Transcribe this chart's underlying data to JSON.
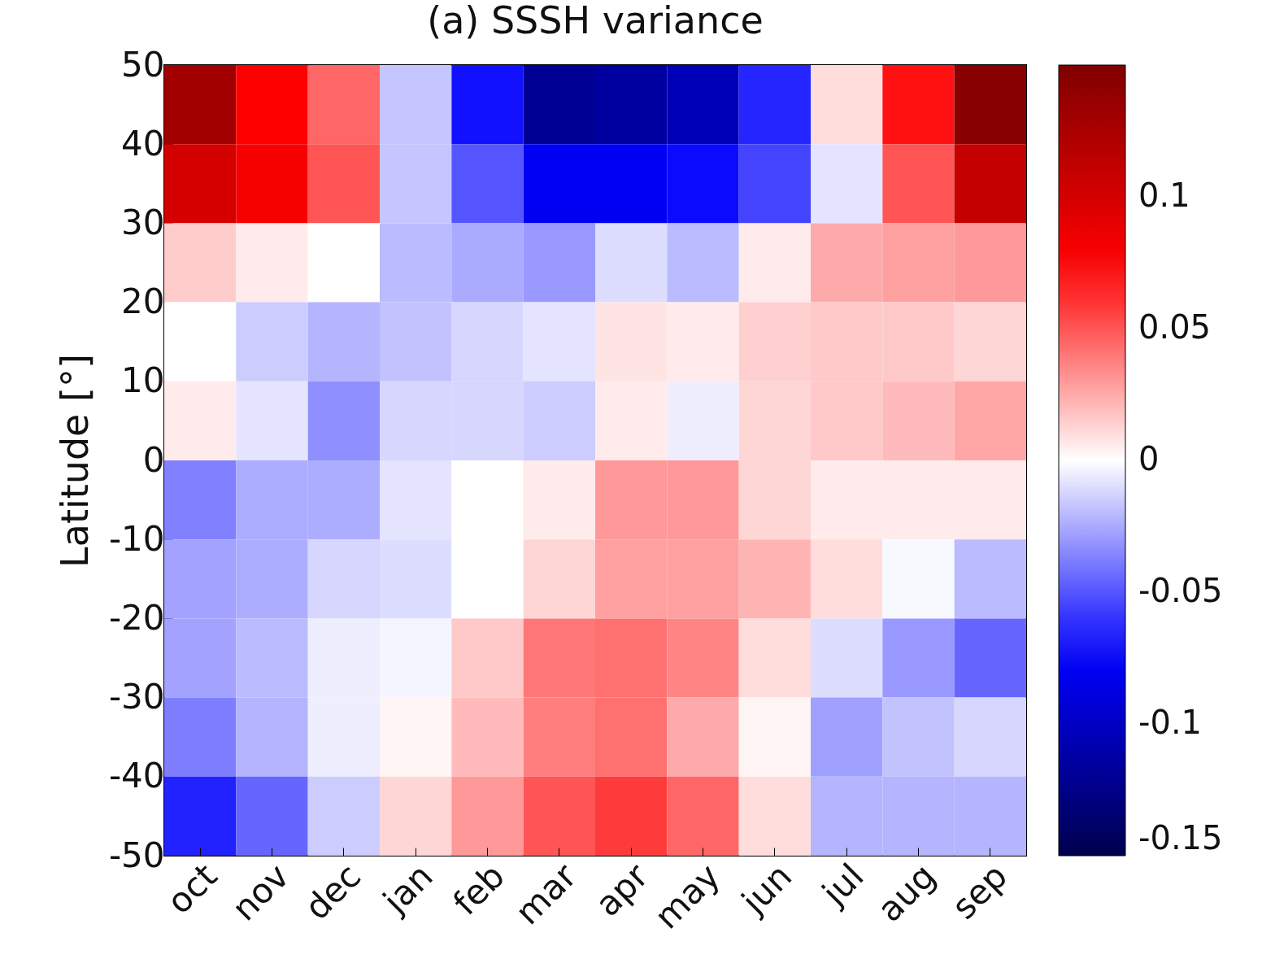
{
  "chart_data": {
    "type": "heatmap",
    "title": "(a) SSSH variance",
    "ylabel": "Latitude [°]",
    "categories": [
      "oct",
      "nov",
      "dec",
      "jan",
      "feb",
      "mar",
      "apr",
      "may",
      "jun",
      "jul",
      "aug",
      "sep"
    ],
    "ylim": [
      -50,
      50
    ],
    "yticks": [
      -50,
      -40,
      -30,
      -20,
      -10,
      0,
      10,
      20,
      30,
      40,
      50
    ],
    "clim": [
      -0.15,
      0.15
    ],
    "cticks": [
      -0.15,
      -0.1,
      -0.05,
      0,
      0.05,
      0.1
    ],
    "cells": [
      [
        0.13,
        0.075,
        0.045,
        -0.017,
        -0.07,
        -0.12,
        -0.115,
        -0.105,
        -0.064,
        0.01,
        0.07,
        0.145
      ],
      [
        0.1,
        0.08,
        0.05,
        -0.017,
        -0.05,
        -0.08,
        -0.08,
        -0.072,
        -0.055,
        -0.008,
        0.05,
        0.11
      ],
      [
        0.015,
        0.006,
        0,
        -0.02,
        -0.025,
        -0.03,
        -0.01,
        -0.02,
        0.006,
        0.025,
        0.028,
        0.03
      ],
      [
        0,
        -0.015,
        -0.022,
        -0.018,
        -0.012,
        -0.008,
        0.008,
        0.006,
        0.014,
        0.016,
        0.016,
        0.012
      ],
      [
        0.006,
        -0.008,
        -0.033,
        -0.012,
        -0.012,
        -0.015,
        0.006,
        -0.005,
        0.012,
        0.016,
        0.02,
        0.026
      ],
      [
        -0.037,
        -0.024,
        -0.024,
        -0.008,
        0,
        0.006,
        0.03,
        0.03,
        0.012,
        0.006,
        0.006,
        0.006
      ],
      [
        -0.027,
        -0.024,
        -0.012,
        -0.01,
        0,
        0.012,
        0.028,
        0.028,
        0.022,
        0.01,
        -0.002,
        -0.02
      ],
      [
        -0.027,
        -0.02,
        -0.005,
        -0.003,
        0.016,
        0.04,
        0.042,
        0.036,
        0.01,
        -0.01,
        -0.03,
        -0.045
      ],
      [
        -0.038,
        -0.022,
        -0.005,
        0.003,
        0.02,
        0.038,
        0.042,
        0.025,
        0.003,
        -0.028,
        -0.018,
        -0.012
      ],
      [
        -0.065,
        -0.045,
        -0.015,
        0.012,
        0.03,
        0.05,
        0.058,
        0.045,
        0.01,
        -0.022,
        -0.022,
        -0.022
      ]
    ]
  }
}
